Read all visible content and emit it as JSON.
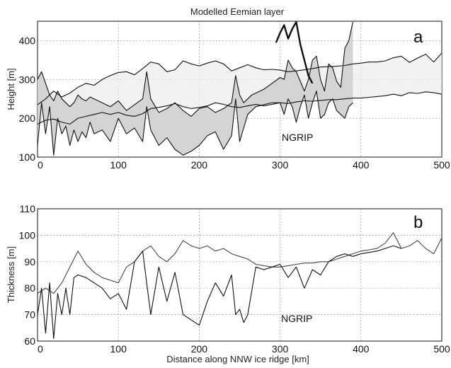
{
  "figure_title": "Modelled Eemian layer",
  "chart_data": [
    {
      "type": "area",
      "panel_label": "a",
      "title": "Modelled Eemian layer",
      "xlabel": "",
      "ylabel": "Height [m]",
      "xlim": [
        0,
        500
      ],
      "ylim": [
        100,
        450
      ],
      "xticks": [
        0,
        100,
        200,
        300,
        400,
        500
      ],
      "yticks": [
        100,
        200,
        300,
        400
      ],
      "grid": true,
      "annotation": "NGRIP",
      "series": [
        {
          "role": "band-upper",
          "x": [
            0,
            5,
            10,
            15,
            20,
            25,
            30,
            35,
            40,
            45,
            50,
            55,
            60,
            65,
            70,
            80,
            90,
            100,
            110,
            120,
            130,
            135,
            140,
            150,
            160,
            170,
            180,
            190,
            200,
            210,
            220,
            230,
            240,
            245,
            250,
            255,
            260,
            265,
            270,
            280,
            290,
            300,
            305,
            310,
            315,
            320,
            325,
            330,
            335,
            340,
            345,
            350,
            355,
            360,
            365,
            370,
            375,
            380,
            385,
            390
          ],
          "y": [
            300,
            320,
            290,
            260,
            245,
            270,
            250,
            240,
            230,
            240,
            260,
            250,
            245,
            255,
            250,
            240,
            230,
            245,
            220,
            235,
            250,
            320,
            250,
            215,
            225,
            240,
            220,
            205,
            225,
            230,
            215,
            225,
            240,
            310,
            260,
            240,
            250,
            260,
            265,
            275,
            290,
            305,
            300,
            350,
            330,
            320,
            295,
            270,
            300,
            350,
            360,
            300,
            270,
            340,
            330,
            295,
            280,
            380,
            400,
            460
          ]
        },
        {
          "role": "band-lower",
          "x": [
            0,
            5,
            10,
            15,
            20,
            25,
            30,
            35,
            40,
            45,
            50,
            55,
            60,
            65,
            70,
            80,
            90,
            100,
            110,
            120,
            130,
            135,
            140,
            150,
            160,
            170,
            180,
            190,
            200,
            210,
            220,
            230,
            240,
            245,
            250,
            255,
            260,
            265,
            270,
            280,
            290,
            300,
            305,
            310,
            315,
            320,
            325,
            330,
            335,
            340,
            345,
            350,
            355,
            360,
            365,
            370,
            375,
            380,
            385,
            390
          ],
          "y": [
            130,
            240,
            160,
            230,
            105,
            200,
            160,
            180,
            130,
            170,
            140,
            165,
            150,
            190,
            160,
            170,
            140,
            200,
            160,
            175,
            140,
            230,
            170,
            130,
            150,
            120,
            105,
            115,
            130,
            155,
            165,
            120,
            155,
            250,
            140,
            175,
            210,
            220,
            230,
            235,
            240,
            240,
            210,
            250,
            230,
            190,
            230,
            260,
            200,
            240,
            270,
            200,
            210,
            240,
            250,
            220,
            210,
            200,
            230,
            240
          ]
        },
        {
          "role": "surface-upper",
          "x": [
            0,
            10,
            20,
            30,
            40,
            50,
            60,
            70,
            80,
            90,
            100,
            110,
            120,
            130,
            140,
            150,
            160,
            170,
            180,
            190,
            200,
            210,
            220,
            230,
            240,
            250,
            260,
            270,
            280,
            290,
            300,
            310,
            320,
            330,
            340,
            350,
            360,
            370,
            380,
            390,
            400,
            410,
            420,
            430,
            440,
            450,
            460,
            470,
            480,
            490,
            500
          ],
          "y": [
            235,
            250,
            270,
            255,
            265,
            280,
            290,
            285,
            300,
            310,
            318,
            320,
            312,
            328,
            345,
            340,
            320,
            325,
            348,
            340,
            335,
            342,
            348,
            340,
            322,
            330,
            338,
            330,
            325,
            326,
            324,
            320,
            322,
            325,
            328,
            332,
            333,
            334,
            336,
            340,
            342,
            345,
            345,
            348,
            356,
            360,
            344,
            355,
            365,
            345,
            368
          ]
        },
        {
          "role": "surface-lower",
          "x": [
            0,
            10,
            20,
            30,
            40,
            50,
            60,
            70,
            80,
            90,
            100,
            110,
            120,
            130,
            140,
            150,
            160,
            170,
            180,
            190,
            200,
            210,
            220,
            230,
            240,
            250,
            260,
            270,
            280,
            290,
            300,
            310,
            320,
            330,
            340,
            350,
            360,
            370,
            380,
            390,
            400,
            410,
            420,
            430,
            440,
            450,
            460,
            470,
            480,
            490,
            500
          ],
          "y": [
            185,
            195,
            198,
            190,
            185,
            200,
            205,
            210,
            215,
            210,
            215,
            208,
            205,
            212,
            225,
            228,
            232,
            238,
            230,
            225,
            228,
            232,
            240,
            236,
            230,
            228,
            232,
            236,
            232,
            236,
            240,
            238,
            242,
            245,
            244,
            246,
            248,
            248,
            250,
            252,
            252,
            254,
            256,
            258,
            262,
            258,
            266,
            264,
            268,
            266,
            262
          ]
        },
        {
          "role": "thick-segment",
          "x": [
            295,
            300,
            305,
            310,
            315,
            320,
            325,
            330,
            335,
            340
          ],
          "y": [
            395,
            420,
            440,
            405,
            430,
            455,
            390,
            350,
            310,
            290
          ]
        }
      ]
    },
    {
      "type": "line",
      "panel_label": "b",
      "title": "",
      "xlabel": "Distance along NNW ice ridge [km]",
      "ylabel": "Thickness [m]",
      "xlim": [
        0,
        500
      ],
      "ylim": [
        60,
        110
      ],
      "xticks": [
        0,
        100,
        200,
        300,
        400,
        500
      ],
      "yticks": [
        60,
        70,
        80,
        90,
        100,
        110
      ],
      "grid": true,
      "annotation": "NGRIP",
      "series": [
        {
          "role": "upper-curve",
          "x": [
            0,
            10,
            20,
            30,
            40,
            50,
            60,
            70,
            80,
            90,
            100,
            110,
            120,
            130,
            140,
            150,
            160,
            170,
            180,
            190,
            200,
            210,
            220,
            230,
            240,
            250,
            260,
            270,
            280,
            290,
            300,
            310,
            320,
            330,
            340,
            350,
            360,
            370,
            380,
            390,
            400,
            410,
            420,
            430,
            440,
            450,
            460,
            470,
            480,
            490,
            500
          ],
          "y": [
            78,
            80,
            78,
            82,
            88,
            94,
            89,
            86,
            84,
            83,
            82,
            88,
            90,
            94,
            96,
            92,
            90,
            93,
            98,
            96,
            95,
            96,
            94,
            95,
            93,
            92,
            91,
            89,
            88.5,
            88,
            88,
            88.5,
            89,
            89.5,
            89.5,
            90,
            90,
            91,
            92,
            93,
            94,
            94.5,
            95,
            97,
            101,
            95,
            96,
            98,
            95,
            93,
            99
          ]
        },
        {
          "role": "lower-curve",
          "x": [
            0,
            5,
            10,
            15,
            20,
            25,
            30,
            35,
            40,
            45,
            50,
            60,
            70,
            80,
            90,
            100,
            110,
            120,
            130,
            140,
            150,
            160,
            170,
            180,
            190,
            200,
            210,
            220,
            230,
            240,
            245,
            250,
            255,
            260,
            270,
            280,
            290,
            300,
            310,
            320,
            330,
            340,
            350,
            360,
            370,
            380,
            390,
            400,
            410,
            420,
            430,
            440,
            450
          ],
          "y": [
            70,
            80,
            63,
            82,
            61,
            78,
            70,
            80,
            70,
            84,
            85,
            84,
            82,
            80,
            76,
            78,
            72,
            90,
            94,
            70,
            88,
            75,
            86,
            70,
            68,
            66,
            75,
            82,
            77,
            85,
            70,
            72,
            67,
            70,
            88,
            87,
            88,
            89,
            84,
            88,
            80,
            87,
            85,
            90,
            92,
            93,
            92,
            93,
            93.5,
            94,
            95,
            96,
            95
          ]
        }
      ]
    }
  ]
}
